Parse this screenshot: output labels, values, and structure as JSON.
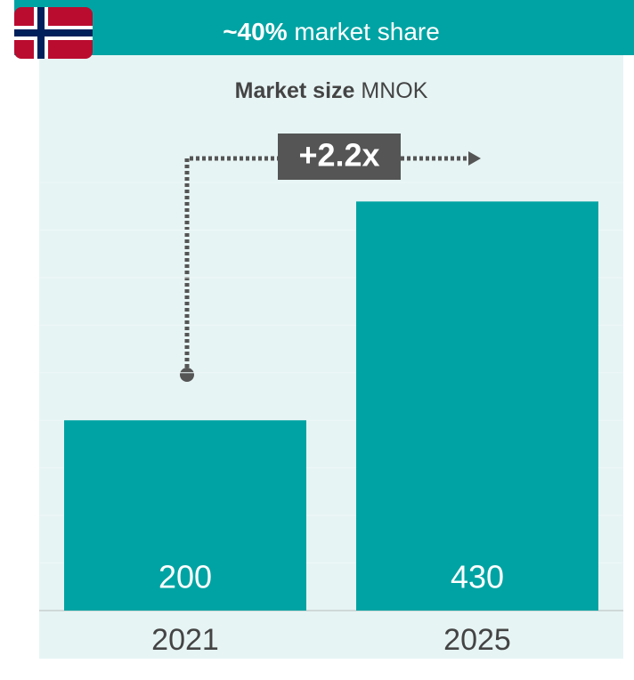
{
  "chart_data": {
    "type": "bar",
    "title_bold": "~40%",
    "title": "market share",
    "subtitle_bold": "Market size",
    "subtitle": "MNOK",
    "annotation": "+2.2x",
    "categories": [
      "2021",
      "2025"
    ],
    "values": [
      200,
      430
    ],
    "color": "#00a3a3",
    "ylim": [
      0,
      450
    ],
    "yticks": [
      0,
      50,
      100,
      150,
      200,
      250,
      300,
      350,
      400,
      450
    ],
    "grid": true
  }
}
